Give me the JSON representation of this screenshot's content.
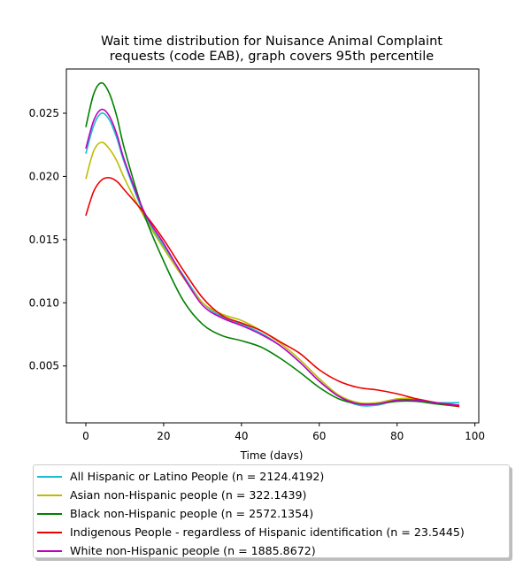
{
  "chart_data": {
    "type": "line",
    "title": "Wait time distribution  for Nuisance Animal Complaint\nrequests (code EAB), graph covers 95th percentile",
    "xlabel": "Time (days)",
    "ylabel": "",
    "xlim": [
      -5,
      101
    ],
    "ylim": [
      0.0005,
      0.0285
    ],
    "xticks": [
      0,
      20,
      40,
      60,
      80,
      100
    ],
    "yticks": [
      0.005,
      0.01,
      0.015,
      0.02,
      0.025
    ],
    "ytick_labels": [
      "0.005",
      "0.010",
      "0.015",
      "0.020",
      "0.025"
    ],
    "grid": false,
    "legend_position": "below",
    "series": [
      {
        "name": "All Hispanic or Latino People (n = 2124.4192)",
        "color": "#17becf",
        "x": [
          0,
          2,
          4,
          6,
          8,
          10,
          15,
          20,
          25,
          30,
          35,
          40,
          45,
          50,
          55,
          60,
          65,
          70,
          75,
          80,
          85,
          90,
          96
        ],
        "y": [
          0.0218,
          0.024,
          0.025,
          0.0245,
          0.023,
          0.021,
          0.017,
          0.0145,
          0.0122,
          0.01,
          0.0089,
          0.0083,
          0.0076,
          0.0066,
          0.0053,
          0.0038,
          0.0026,
          0.0019,
          0.0019,
          0.0023,
          0.0023,
          0.0021,
          0.0021
        ]
      },
      {
        "name": "Asian non-Hispanic people (n = 322.1439)",
        "color": "#bcbd00",
        "x": [
          0,
          2,
          4,
          6,
          8,
          10,
          15,
          20,
          25,
          30,
          35,
          40,
          45,
          50,
          55,
          60,
          65,
          70,
          75,
          80,
          85,
          90,
          96
        ],
        "y": [
          0.0198,
          0.022,
          0.0227,
          0.0222,
          0.0212,
          0.0198,
          0.0168,
          0.0143,
          0.012,
          0.01,
          0.0091,
          0.0086,
          0.0078,
          0.0068,
          0.0055,
          0.004,
          0.0027,
          0.0021,
          0.0021,
          0.0024,
          0.0024,
          0.0021,
          0.0018
        ]
      },
      {
        "name": "Black non-Hispanic people (n = 2572.1354)",
        "color": "#008000",
        "x": [
          0,
          2,
          4,
          6,
          8,
          10,
          15,
          20,
          25,
          30,
          35,
          40,
          45,
          50,
          55,
          60,
          65,
          70,
          75,
          80,
          85,
          90,
          96
        ],
        "y": [
          0.0239,
          0.0265,
          0.0274,
          0.0266,
          0.0247,
          0.0221,
          0.017,
          0.0133,
          0.0102,
          0.0083,
          0.0074,
          0.007,
          0.0065,
          0.0056,
          0.0045,
          0.0033,
          0.0024,
          0.002,
          0.002,
          0.0022,
          0.0022,
          0.002,
          0.0018
        ]
      },
      {
        "name": "Indigenous People - regardless of Hispanic identification (n = 23.5445)",
        "color": "#ee0000",
        "x": [
          0,
          2,
          4,
          6,
          8,
          10,
          15,
          20,
          25,
          30,
          35,
          40,
          45,
          50,
          55,
          60,
          65,
          70,
          75,
          80,
          85,
          90,
          96
        ],
        "y": [
          0.0169,
          0.0188,
          0.0197,
          0.0199,
          0.0196,
          0.0189,
          0.0171,
          0.015,
          0.0126,
          0.0104,
          0.009,
          0.0084,
          0.0078,
          0.0069,
          0.006,
          0.0047,
          0.0038,
          0.0033,
          0.0031,
          0.0028,
          0.0024,
          0.0021,
          0.0018
        ]
      },
      {
        "name": "White non-Hispanic people (n = 1885.8672)",
        "color": "#bf00bf",
        "x": [
          0,
          2,
          4,
          6,
          8,
          10,
          15,
          20,
          25,
          30,
          35,
          40,
          45,
          50,
          55,
          60,
          65,
          70,
          75,
          80,
          85,
          90,
          96
        ],
        "y": [
          0.0222,
          0.0244,
          0.0253,
          0.0248,
          0.0233,
          0.0212,
          0.0172,
          0.0147,
          0.0121,
          0.0098,
          0.0088,
          0.0082,
          0.0075,
          0.0066,
          0.0053,
          0.0038,
          0.0026,
          0.002,
          0.002,
          0.0023,
          0.0023,
          0.0021,
          0.0019
        ]
      }
    ]
  }
}
